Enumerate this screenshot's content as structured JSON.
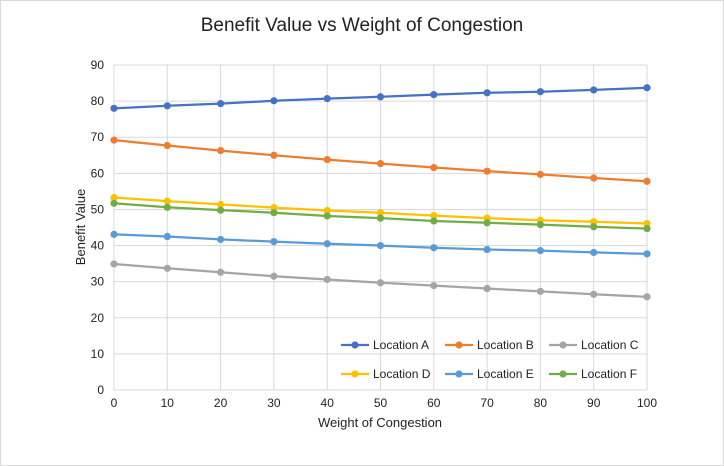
{
  "chart_data": {
    "type": "line",
    "title": "Benefit Value vs Weight of Congestion",
    "xlabel": "Weight of Congestion",
    "ylabel": "Benefit Value",
    "x": [
      0,
      10,
      20,
      30,
      40,
      50,
      60,
      70,
      80,
      90,
      100
    ],
    "xlim": [
      0,
      100
    ],
    "ylim": [
      0,
      90
    ],
    "yticks": [
      0,
      10,
      20,
      30,
      40,
      50,
      60,
      70,
      80,
      90
    ],
    "grid": true,
    "legend_position": "bottom-right inside plot",
    "series": [
      {
        "name": "Location A",
        "color": "#4472C4",
        "values": [
          78.0,
          78.7,
          79.3,
          80.1,
          80.7,
          81.2,
          81.8,
          82.3,
          82.6,
          83.1,
          83.7
        ]
      },
      {
        "name": "Location B",
        "color": "#ED7D31",
        "values": [
          69.2,
          67.7,
          66.3,
          65.0,
          63.8,
          62.7,
          61.6,
          60.6,
          59.7,
          58.7,
          57.8
        ]
      },
      {
        "name": "Location C",
        "color": "#A5A5A5",
        "values": [
          34.9,
          33.7,
          32.6,
          31.5,
          30.6,
          29.7,
          28.9,
          28.1,
          27.3,
          26.5,
          25.8
        ]
      },
      {
        "name": "Location D",
        "color": "#FFC000",
        "values": [
          53.3,
          52.3,
          51.4,
          50.5,
          49.7,
          49.1,
          48.3,
          47.6,
          47.0,
          46.6,
          46.1
        ]
      },
      {
        "name": "Location E",
        "color": "#5B9BD5",
        "values": [
          43.1,
          42.5,
          41.7,
          41.1,
          40.5,
          40.0,
          39.4,
          38.9,
          38.6,
          38.1,
          37.7
        ]
      },
      {
        "name": "Location F",
        "color": "#70AD47",
        "values": [
          51.7,
          50.6,
          49.8,
          49.1,
          48.2,
          47.6,
          46.8,
          46.3,
          45.8,
          45.2,
          44.7
        ]
      }
    ]
  }
}
